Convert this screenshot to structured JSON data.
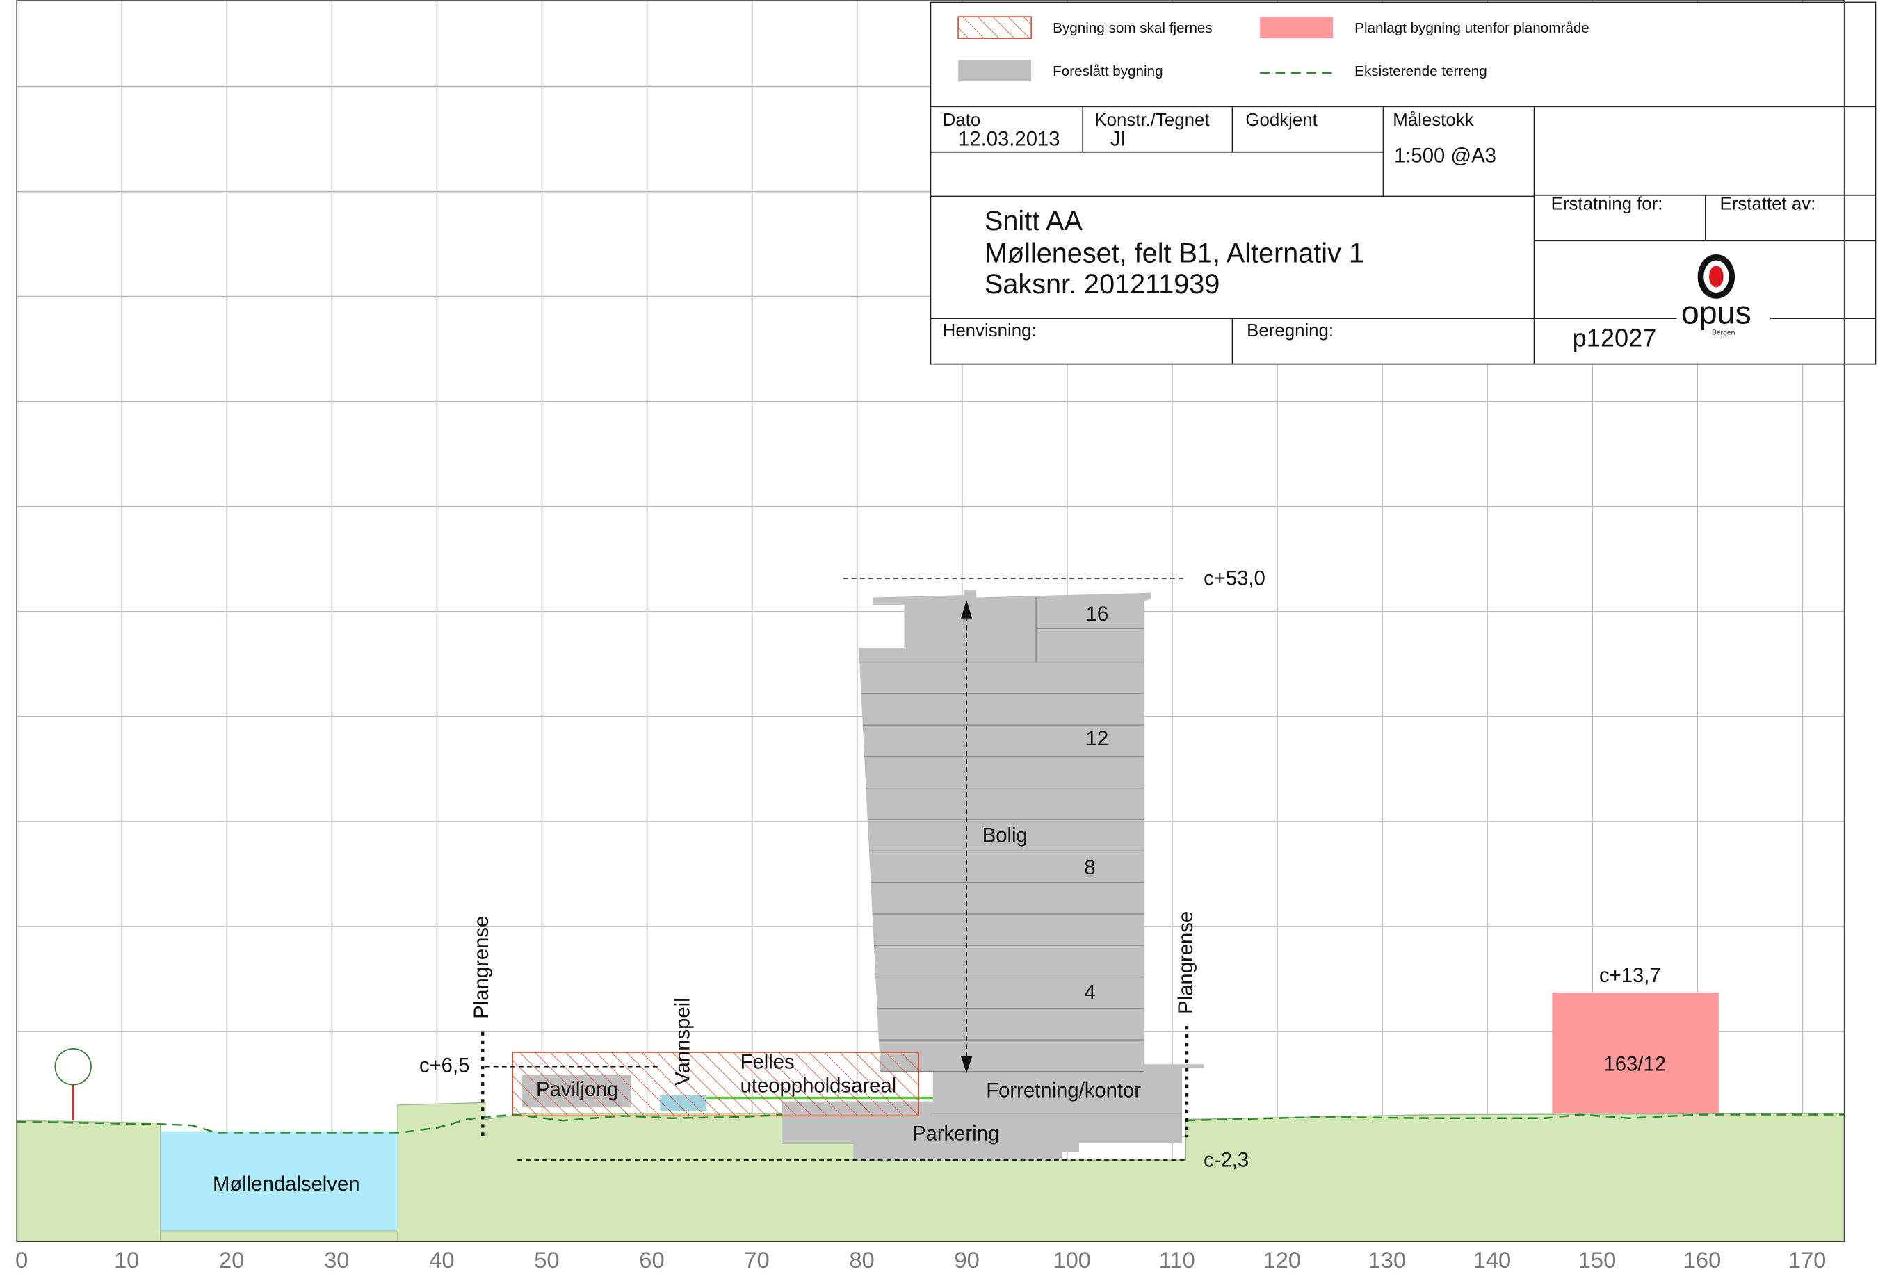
{
  "legend": [
    "Bygning som skal fjernes",
    "Planlagt bygning utenfor planområde",
    "Foreslått bygning",
    "Eksisterende terreng"
  ],
  "title_block": {
    "dato_label": "Dato",
    "dato": "12.03.2013",
    "konstr_label": "Konstr./Tegnet",
    "konstr": "JI",
    "godkjent_label": "Godkjent",
    "malestokk_label": "Målestokk",
    "malestokk": "1:500 @A3",
    "title": [
      "Snitt AA",
      "Mølleneset, felt B1, Alternativ 1",
      "Saksnr. 201211939"
    ],
    "erstatning_for": "Erstatning for:",
    "erstattet_av": "Erstattet av:",
    "henvisning": "Henvisning:",
    "beregning": "Beregning:",
    "project": "p12027",
    "logo": "opus",
    "logo_sub": "Bergen"
  },
  "drawing": {
    "river": "Møllendalselven",
    "plangrense": [
      "Plangrense",
      "Plangrense"
    ],
    "pavilion": "Paviljong",
    "water_mirror": "Vannspeil",
    "common_area": [
      "Felles",
      "uteoppholdsareal"
    ],
    "level_pavilion": "c+6,5",
    "level_top": "c+53,0",
    "level_bottom": "c-2,3",
    "level_neighbour": "c+13,7",
    "neighbour": "163/12",
    "floors": [
      "16",
      "12",
      "8",
      "4"
    ],
    "residential": "Bolig",
    "commercial": "Forretning/kontor",
    "parking": "Parkering"
  },
  "x_axis": [
    0,
    10,
    20,
    30,
    40,
    50,
    60,
    70,
    80,
    90,
    100,
    110,
    120,
    130,
    140,
    150,
    160,
    170
  ]
}
